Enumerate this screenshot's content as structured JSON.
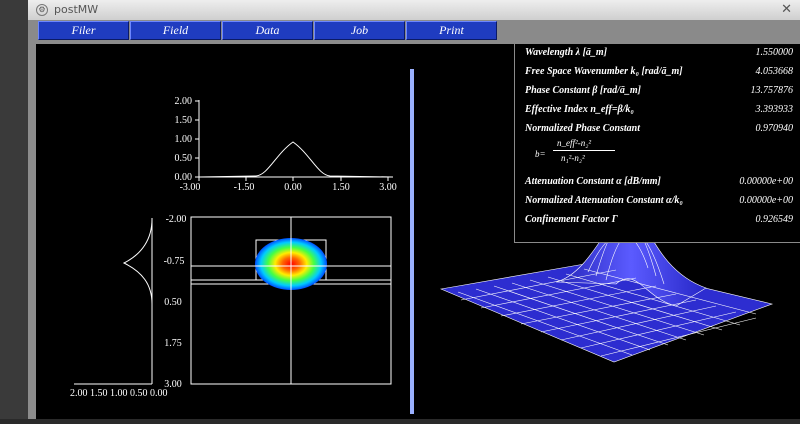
{
  "window": {
    "title": "postMW",
    "sys_icon": "⚙",
    "close_glyph": "✕"
  },
  "menu": [
    {
      "id": "filer",
      "label": "Filer"
    },
    {
      "id": "field",
      "label": "Field"
    },
    {
      "id": "data",
      "label": "Data"
    },
    {
      "id": "job",
      "label": "Job"
    },
    {
      "id": "print",
      "label": "Print"
    }
  ],
  "info": {
    "wavelength": {
      "label": "Wavelength λ [ā_m]",
      "value": "1.550000"
    },
    "freespace": {
      "label": "Free Space Wavenumber k₀ [rad/ā_m]",
      "value": "4.053668"
    },
    "phase": {
      "label": "Phase Constant β [rad/ā_m]",
      "value": "13.757876"
    },
    "effindex": {
      "label": "Effective Index n_eff=β/k₀",
      "value": "3.393933"
    },
    "normphase": {
      "label": "Normalized Phase Constant",
      "value": "0.970940"
    },
    "formula": {
      "lhs": "b=",
      "num": "n_eff²-n₂²",
      "den": "n₁²-n₂²"
    },
    "attenuation": {
      "label": "Attenuation Constant α [dB/mm]",
      "value": "0.00000e+00"
    },
    "normatten": {
      "label": "Normalized Attenuation Constant α/k₀",
      "value": "0.00000e+00"
    },
    "confinement": {
      "label": "Confinement Factor Γ",
      "value": "0.926549"
    }
  },
  "top_plot": {
    "yticks": [
      "2.00",
      "1.50",
      "1.00",
      "0.50",
      "0.00"
    ],
    "xticks": [
      "-3.00",
      "-1.50",
      "0.00",
      "1.50",
      "3.00"
    ]
  },
  "left_plot": {
    "yticks": [
      "-2.00",
      "-0.75",
      "0.50",
      "1.75",
      "3.00"
    ],
    "xticks": "2.00 1.50 1.00 0.50 0.00"
  },
  "colors": {
    "menu": "#1f3cc0",
    "mesh": "#ffffff",
    "surface": "#3b3bdc"
  }
}
